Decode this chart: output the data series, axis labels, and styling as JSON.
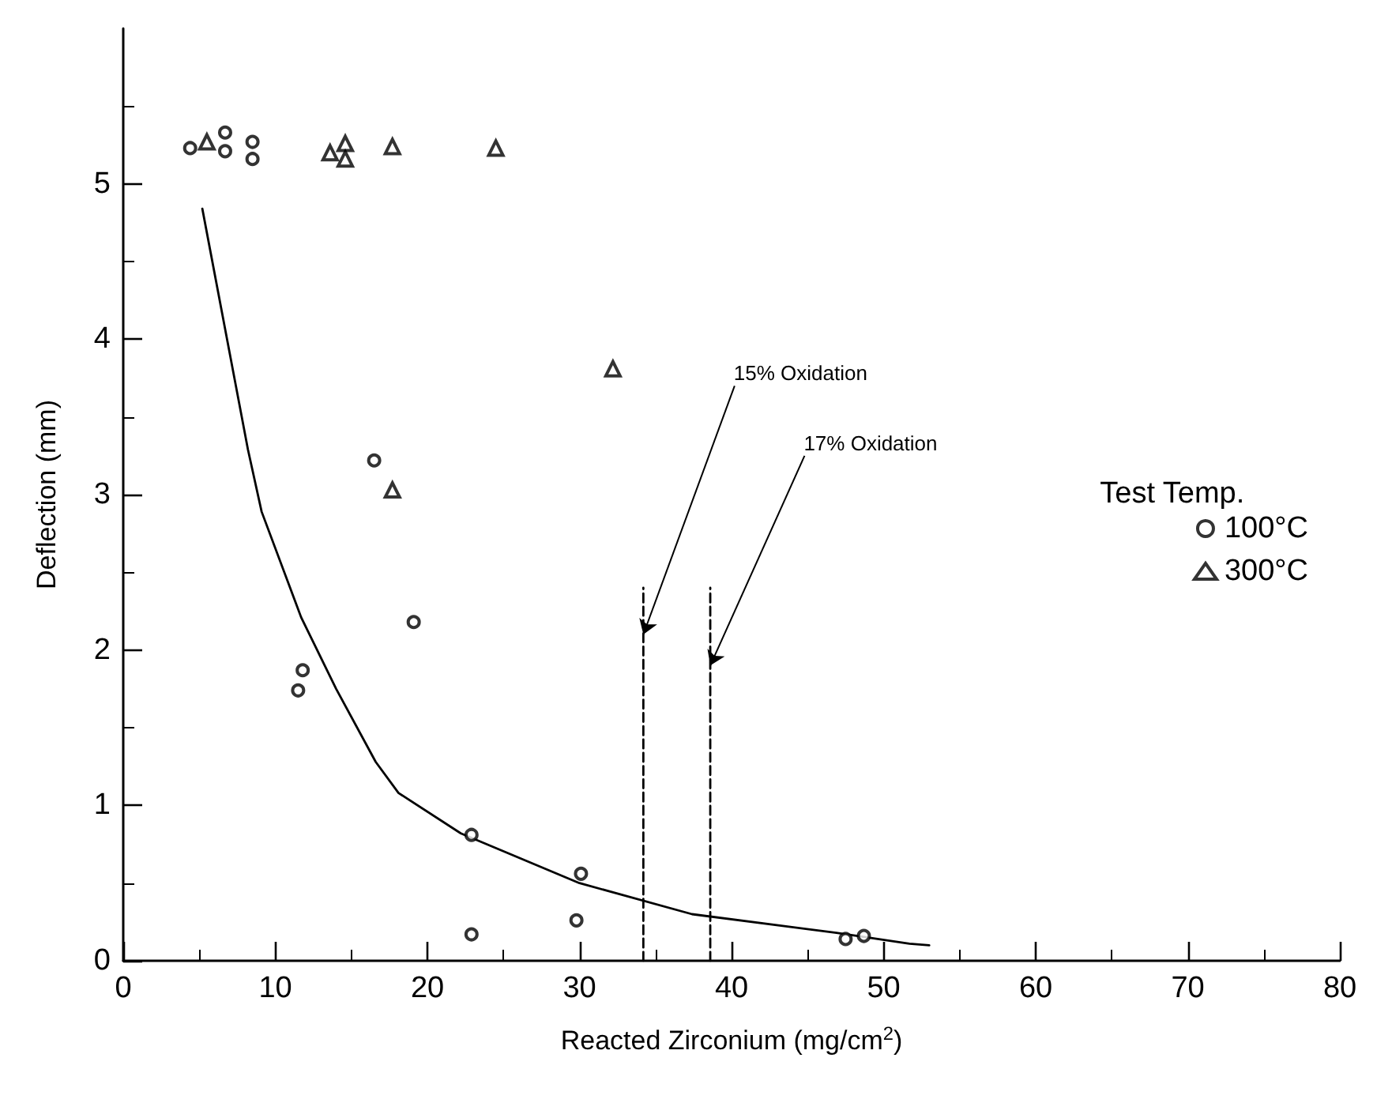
{
  "chart_data": {
    "type": "scatter",
    "xlabel": "Reacted Zirconium (mg/cm$^{2}$)",
    "ylabel": "Deflection (mm)",
    "legend_title": "Test Temp.",
    "xlim": [
      0,
      80
    ],
    "ylim": [
      0,
      6
    ],
    "xticks": [
      0,
      10,
      20,
      30,
      40,
      50,
      60,
      70,
      80
    ],
    "yticks": [
      0,
      1,
      2,
      3,
      4,
      5
    ],
    "grid": false,
    "legend": "right",
    "series": [
      {
        "name": "100°C",
        "color": "#000000",
        "marker": "circle",
        "x": [
          4.4,
          6.7,
          6.7,
          8.5,
          8.5,
          16.5,
          19.1,
          11.8,
          11.5,
          22.9,
          30.1,
          22.9,
          29.8,
          47.5,
          48.7
        ],
        "values": [
          5.23,
          5.33,
          5.21,
          5.27,
          5.16,
          3.22,
          2.18,
          1.87,
          1.74,
          0.81,
          0.56,
          0.17,
          0.26,
          0.14,
          0.16
        ]
      },
      {
        "name": "300°C",
        "color": "#000000",
        "marker": "triangle",
        "x": [
          5.5,
          13.6,
          14.6,
          14.6,
          17.7,
          24.5,
          17.7,
          32.2
        ],
        "values": [
          5.27,
          5.2,
          5.26,
          5.16,
          5.24,
          5.23,
          3.03,
          3.81
        ]
      },
      {
        "type": "line",
        "color": "#000000",
        "marker": "none",
        "line_style": "solid",
        "x": [
          5.2,
          8.2,
          9.1,
          11.7,
          14.0,
          16.6,
          18.1,
          22.2,
          30.0,
          37.4,
          46.9,
          51.7,
          53
        ],
        "values": [
          4.84,
          3.29,
          2.89,
          2.21,
          1.75,
          1.28,
          1.08,
          0.82,
          0.5,
          0.3,
          0.18,
          0.11,
          0.1
        ]
      },
      {
        "type": "line",
        "color": "#000000",
        "marker": "none",
        "line_style": "dashed",
        "x": [
          34.2,
          34.2
        ],
        "values": [
          0,
          2.4
        ]
      },
      {
        "type": "line",
        "color": "#000000",
        "marker": "none",
        "line_style": "dashed",
        "x": [
          38.6,
          38.6
        ],
        "values": [
          0,
          2.4
        ]
      }
    ],
    "annotations": [
      {
        "text": "15% Oxidation",
        "x": 34.2,
        "y": 2.1
      },
      {
        "text": "17% Oxidation",
        "x": 38.6,
        "y": 1.9
      }
    ]
  }
}
